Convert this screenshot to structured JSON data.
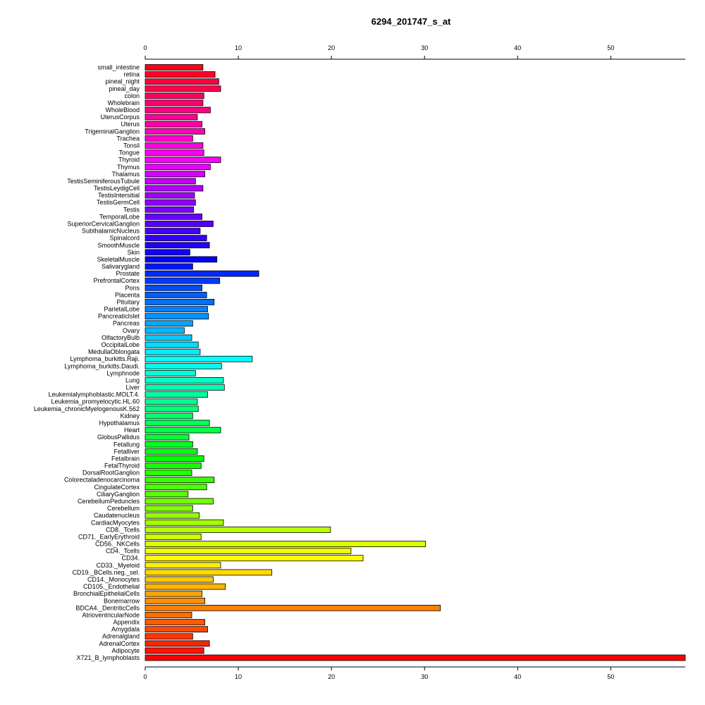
{
  "chart_data": {
    "type": "bar",
    "orientation": "horizontal",
    "title": "6294_201747_s_at",
    "xlabel": "",
    "ylabel": "",
    "xlim": [
      0,
      58
    ],
    "ticks": [
      0,
      10,
      20,
      30,
      40,
      50
    ],
    "tick_labels": [
      "0",
      "10",
      "20",
      "30",
      "40",
      "50"
    ],
    "axis_positions": [
      "top",
      "bottom"
    ],
    "grid": false,
    "legend": "none",
    "color_scheme": "rainbow",
    "categories": [
      "small_intestine",
      "retina",
      "pineal_night",
      "pineal_day",
      "colon",
      "Wholebrain",
      "WholeBlood",
      "UterusCorpus",
      "Uterus",
      "TrigeminalGanglion",
      "Trachea",
      "Tonsil",
      "Tongue",
      "Thyroid",
      "Thymus",
      "Thalamus",
      "TestisSeminiferousTubule",
      "TestisLeydigCell",
      "TestisIntersitial",
      "TestisGermCell",
      "Testis",
      "TemporalLobe",
      "SuperiorCervicalGanglion",
      "SubthalamicNucleus",
      "Spinalcord",
      "SmoothMuscle",
      "Skin",
      "SkeletalMuscle",
      "Salivarygland",
      "Prostate",
      "PrefrontalCortex",
      "Pons",
      "Placenta",
      "Pituitary",
      "ParietalLobe",
      "PancreaticIslet",
      "Pancreas",
      "Ovary",
      "OlfactoryBulb",
      "OccipitalLobe",
      "MedullaOblongata",
      "Lymphoma_burkitts.Raji.",
      "Lymphoma_burkitts.Daudi.",
      "Lymphnode",
      "Lung",
      "Liver",
      "Leukemialymphoblastic.MOLT.4.",
      "Leukemia_promyelocytic.HL.60",
      "Leukemia_chronicMyelogenousK.562",
      "Kidney",
      "Hypothalamus",
      "Heart",
      "GlobusPallidus",
      "Fetallung",
      "Fetalliver",
      "Fetalbrain",
      "FetalThyroid",
      "DorsalRootGanglion",
      "Colorectaladenocarcinoma",
      "CingulateCortex",
      "CiliaryGanglion",
      "CerebellumPeduncles",
      "Cerebellum",
      "Caudatenucleus",
      "CardiacMyocytes",
      "CD8._Tcells",
      "CD71._EarlyErythroid",
      "CD56._NKCells",
      "CD4._Tcells",
      "CD34.",
      "CD33._Myeloid",
      "CD19._BCells.neg._sel.",
      "CD14._Monocytes",
      "CD105._Endothelial",
      "BronchialEpithelialCells",
      "Bonemarrow",
      "BDCA4._DentriticCells",
      "AtrioventricularNode",
      "Appendix",
      "Amygdala",
      "Adrenalgland",
      "AdrenalCortex",
      "Adipocyte",
      "X721_B_lymphoblasts"
    ],
    "values": [
      6.2,
      7.5,
      7.9,
      8.1,
      6.3,
      6.2,
      7.0,
      5.6,
      6.1,
      6.4,
      5.1,
      6.2,
      6.3,
      8.1,
      7.0,
      6.4,
      5.4,
      6.2,
      5.3,
      5.4,
      5.2,
      6.1,
      7.3,
      5.9,
      6.6,
      6.9,
      4.8,
      7.7,
      5.1,
      12.2,
      8.0,
      6.1,
      6.6,
      7.4,
      6.7,
      6.8,
      5.1,
      4.2,
      5.0,
      5.7,
      5.9,
      11.5,
      8.2,
      5.4,
      8.4,
      8.5,
      6.7,
      5.6,
      5.7,
      5.1,
      6.9,
      8.1,
      4.7,
      5.1,
      5.6,
      6.3,
      6.0,
      5.0,
      7.4,
      6.6,
      4.6,
      7.3,
      5.1,
      5.8,
      8.4,
      19.9,
      6.0,
      30.1,
      22.1,
      23.4,
      8.1,
      13.6,
      7.3,
      8.6,
      6.1,
      6.4,
      31.7,
      5.0,
      6.4,
      6.7,
      5.1,
      6.9,
      6.3,
      58.0
    ]
  }
}
